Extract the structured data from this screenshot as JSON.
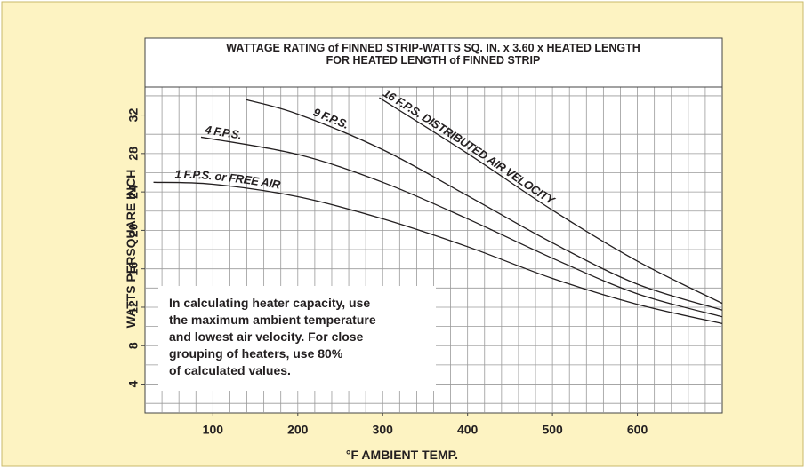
{
  "chart_data": {
    "type": "line",
    "title": "WATTAGE RATING of FINNED STRIP-WATTS SQ. IN. x 3.60 x HEATED LENGTH",
    "subtitle": "FOR HEATED LENGTH of FINNED STRIP",
    "x_label": "°F AMBIENT TEMP.",
    "y_label": "WATTS PERSQUARE INCH",
    "annotation": [
      "In calculating heater capacity, use",
      "the maximum ambient temperature",
      "and lowest air velocity. For close",
      "grouping of heaters, use 80%",
      "of calculated values."
    ],
    "xlim": [
      20,
      700
    ],
    "ylim": [
      1,
      40
    ],
    "xticks": [
      100,
      200,
      300,
      400,
      500,
      600
    ],
    "yticks": [
      4,
      8,
      12,
      16,
      20,
      24,
      28,
      32
    ],
    "xminorticks": [
      40,
      60,
      80,
      100,
      120,
      140,
      160,
      180,
      200,
      220,
      240,
      260,
      280,
      300,
      320,
      340,
      360,
      380,
      400,
      420,
      440,
      460,
      480,
      500,
      520,
      540,
      560,
      580,
      600,
      620,
      640,
      660,
      680
    ],
    "yminorticks": [
      2,
      4,
      6,
      8,
      10,
      12,
      14,
      16,
      18,
      20,
      22,
      24,
      26,
      28,
      30,
      32,
      34,
      36,
      38
    ],
    "grid": true,
    "series": [
      {
        "name": "1 F.P.S. or FREE AIR",
        "color": "#231f20",
        "x": [
          30,
          100,
          200,
          300,
          400,
          500,
          600,
          700
        ],
        "values": [
          25.0,
          24.8,
          23.5,
          21.2,
          18.3,
          15.0,
          12.3,
          10.3
        ]
      },
      {
        "name": "4 F.P.S.",
        "color": "#231f20",
        "x": [
          86,
          200,
          300,
          400,
          500,
          600,
          700
        ],
        "values": [
          29.7,
          27.9,
          25.0,
          21.2,
          17.1,
          13.4,
          11.0
        ]
      },
      {
        "name": "9 F.P.S.",
        "color": "#231f20",
        "x": [
          139,
          200,
          300,
          400,
          500,
          600,
          700
        ],
        "values": [
          33.6,
          32.1,
          28.4,
          23.6,
          18.7,
          14.4,
          11.7
        ]
      },
      {
        "name": "16 F.P.S. DISTRIBUTED AIR VELOCITY",
        "color": "#231f20",
        "x": [
          296,
          400,
          500,
          600,
          700
        ],
        "values": [
          33.8,
          28.0,
          22.1,
          16.8,
          12.4
        ]
      }
    ]
  }
}
